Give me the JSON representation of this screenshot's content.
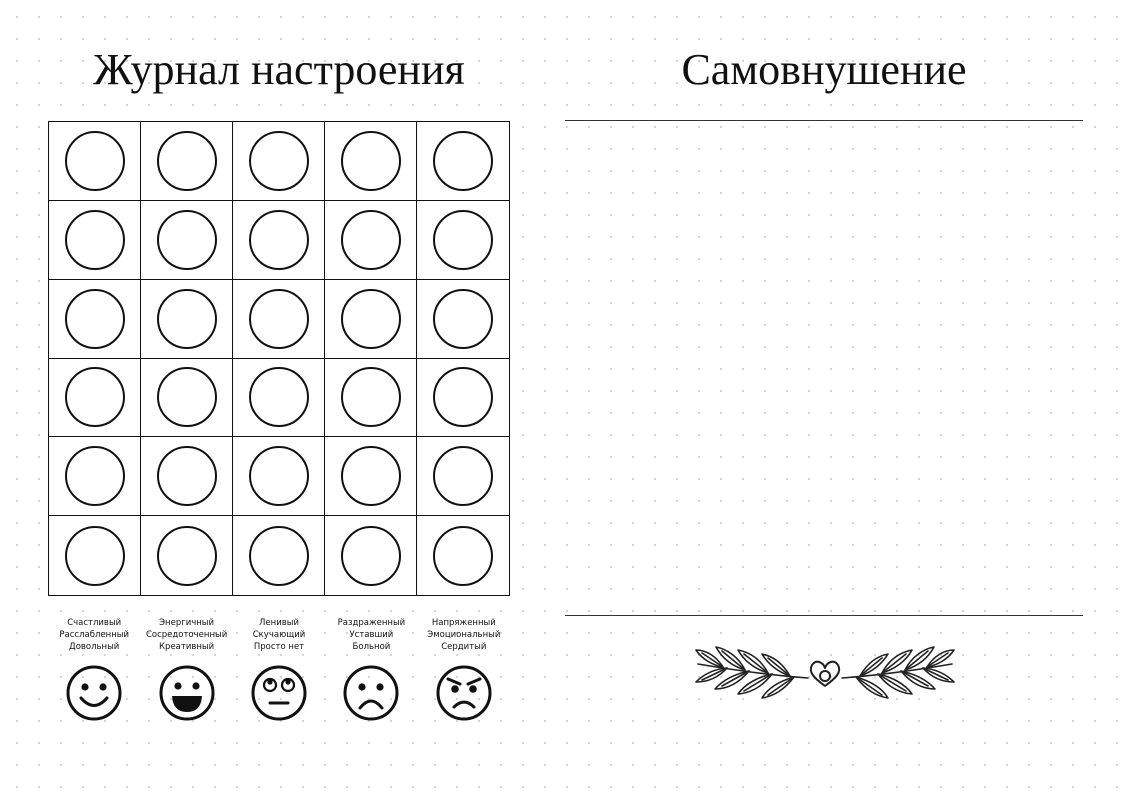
{
  "mood_journal": {
    "title": "Журнал настроения",
    "grid": {
      "rows": 6,
      "columns": 5
    },
    "legend": [
      {
        "lines": [
          "Счастливый",
          "Расслабленный",
          "Довольный"
        ],
        "icon": "happy-face-icon"
      },
      {
        "lines": [
          "Энергичный",
          "Сосредоточенный",
          "Креативный"
        ],
        "icon": "grinning-face-icon"
      },
      {
        "lines": [
          "Ленивый",
          "Скучающий",
          "Просто нет"
        ],
        "icon": "eye-roll-face-icon"
      },
      {
        "lines": [
          "Раздраженный",
          "Уставший",
          "Больной"
        ],
        "icon": "sad-face-icon"
      },
      {
        "lines": [
          "Напряженный",
          "Эмоциональный",
          "Сердитый"
        ],
        "icon": "angry-face-icon"
      }
    ]
  },
  "affirmation": {
    "title": "Самовнушение",
    "ornament": "laurel-heart-icon"
  }
}
